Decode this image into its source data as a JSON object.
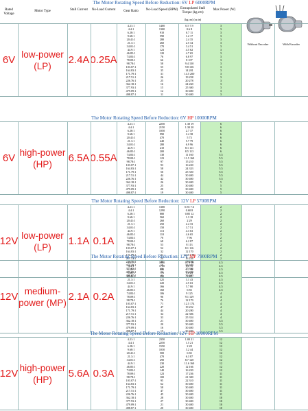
{
  "header": {
    "title_prefix": "The Motor Rotating Speed Before Reduction: 6V",
    "title_variant": "LP",
    "title_suffix": "6000RPM",
    "col_rated_voltage": "Rated Voltage",
    "col_motor_type": "Motor Type",
    "col_stall_current": "Stall Current",
    "col_no_load_current": "No-Load Current",
    "col_gear_ratio": "Gear Ratio",
    "col_no_load_speed": "No-Load Speed (RPM)",
    "col_stall_torque": "Extrapolated Stall Torque (kg.cm)",
    "col_stall_torque_units": "(kg.cm) (oz.in)",
    "col_max_power": "Max Power (W)",
    "label_without_encoder": "Without Encoder",
    "label_with_encoder": "With Encoder"
  },
  "sections": [
    {
      "title_prefix": "",
      "title_variant": "",
      "title_suffix": "",
      "voltage": "6V",
      "motor_type": "low-power (LP)",
      "stall_current": "2.4A",
      "no_load_current": "0.25A",
      "rows": [
        [
          "4.21:1",
          "1400",
          "0.5",
          "7.9",
          "3"
        ],
        [
          "4.4:1",
          "1300",
          "0.6",
          "8",
          "3"
        ],
        [
          "6.28:1",
          "910",
          "0.7",
          "11",
          "3"
        ],
        [
          "9.68:1",
          "590",
          "1.2",
          "17",
          "3"
        ],
        [
          "20.41:1",
          "280",
          "2.4",
          "35",
          "3"
        ],
        [
          "21.3:1",
          "260",
          "2.5",
          "34",
          "3"
        ],
        [
          "34.01:1",
          "170",
          "3.4",
          "51",
          "3"
        ],
        [
          "44.9:1",
          "123",
          "4.5",
          "62",
          "3"
        ],
        [
          "46.85:1",
          "120",
          "4.7",
          "65",
          "3"
        ],
        [
          "74.83:1",
          "76",
          "6.8",
          "97",
          "3"
        ],
        [
          "78.09:1",
          "66",
          "8",
          "107",
          "3"
        ],
        [
          "98.78:1",
          "58",
          "9.4",
          "130",
          "3"
        ],
        [
          "103.07:1",
          "55",
          "9.8",
          "136",
          "3"
        ],
        [
          "164.83:1",
          "35",
          "14",
          "201",
          "3"
        ],
        [
          "171.79:1",
          "31",
          "14.5",
          "200",
          "3"
        ],
        [
          "217.51:1",
          "26",
          "19",
          "258",
          "3"
        ],
        [
          "226.76:1",
          "25",
          "20",
          "278",
          "3"
        ],
        [
          "362.18:1",
          "16",
          "24",
          "260",
          "3"
        ],
        [
          "377.93:1",
          "15",
          "25",
          "300",
          "3"
        ],
        [
          "479.09:1",
          "12",
          "30",
          "400",
          "3"
        ],
        [
          "498.87:1",
          "11",
          "30",
          "400",
          "3"
        ]
      ]
    },
    {
      "title_prefix": "The Motor Rotating Speed Before Reduction: 6V",
      "title_variant": "HP",
      "title_suffix": "10000RPM",
      "voltage": "6V",
      "motor_type": "high-power (HP)",
      "stall_current": "6.5A",
      "no_load_current": "0.55A",
      "rows": [
        [
          "4.21:1",
          "2250",
          "1.30",
          "19",
          "6"
        ],
        [
          "4.4:1",
          "2150",
          "1.30",
          "20",
          "6"
        ],
        [
          "6.28:1",
          "1050",
          "2.7",
          "37",
          "6"
        ],
        [
          "9.68:1",
          "990",
          "2.4",
          "38",
          "6"
        ],
        [
          "20.41:1",
          "470",
          "5",
          "73",
          "6"
        ],
        [
          "21.3:1",
          "440",
          "5.7",
          "79",
          "6"
        ],
        [
          "34.01:1",
          "280",
          "6.9",
          "96",
          "6"
        ],
        [
          "44.9:1",
          "210",
          "8.1",
          "111",
          "6"
        ],
        [
          "46.85:1",
          "200",
          "8.5",
          "113",
          "6"
        ],
        [
          "74.83:1",
          "130",
          "11",
          "160",
          "5.5"
        ],
        [
          "78.09:1",
          "123",
          "11.5",
          "160",
          "5.5"
        ],
        [
          "98.78:1",
          "97",
          "15",
          "210",
          "5.5"
        ],
        [
          "103.07:1",
          "93",
          "16",
          "220",
          "5.5"
        ],
        [
          "164.83:1",
          "58",
          "24",
          "333",
          "5.5"
        ],
        [
          "171.79:1",
          "56",
          "25",
          "350",
          "5.5"
        ],
        [
          "217.51:1",
          "44",
          "30",
          "400",
          "5.5"
        ],
        [
          "226.76:1",
          "42",
          "30",
          "400",
          "5.5"
        ],
        [
          "362.18:1",
          "26",
          "30",
          "400",
          "5"
        ],
        [
          "377.93:1",
          "25",
          "30",
          "400",
          "5"
        ],
        [
          "479.09:1",
          "20",
          "30",
          "400",
          "5"
        ],
        [
          "498.87:1",
          "19",
          "30",
          "400",
          "5"
        ]
      ]
    },
    {
      "title_prefix": "The Motor Rotating Speed Before Reduction: 12V",
      "title_variant": "LP",
      "title_suffix": "5700RPM",
      "voltage": "12V",
      "motor_type": "low-power (LP)",
      "stall_current": "1.1A",
      "no_load_current": "0.1A",
      "rows": [
        [
          "4.21:1",
          "1300",
          "0.55",
          "7.6",
          "2"
        ],
        [
          "4.4:1",
          "1290",
          "0.60",
          "8",
          "2"
        ],
        [
          "6.28:1",
          "880",
          "0.85",
          "12",
          "2"
        ],
        [
          "9.68:1",
          "560",
          "1.3",
          "18",
          "2"
        ],
        [
          "20.41:1",
          "260",
          "2",
          "29",
          "2"
        ],
        [
          "21.3:1",
          "250",
          "2.4",
          "33",
          "2"
        ],
        [
          "34.01:1",
          "150",
          "3.7",
          "51",
          "2"
        ],
        [
          "44.9:1",
          "113",
          "4.3",
          "63",
          "2"
        ],
        [
          "46.85:1",
          "110",
          "4.6",
          "65",
          "2"
        ],
        [
          "74.83:1",
          "70",
          "7",
          "96",
          "2"
        ],
        [
          "78.09:1",
          "68",
          "6.2",
          "87",
          "2"
        ],
        [
          "98.78:1",
          "53",
          "8",
          "113",
          "2"
        ],
        [
          "103.07:1",
          "52",
          "8.1",
          "116",
          "2"
        ],
        [
          "164.83:1",
          "32",
          "12",
          "170",
          "2"
        ],
        [
          "171.79:1",
          "31",
          "12.5",
          "178",
          "2"
        ],
        [
          "217.51:1",
          "24",
          "16",
          "226",
          "2"
        ],
        [
          "226.76:1",
          "23",
          "17",
          "236",
          "2"
        ],
        [
          "362.18:1",
          "15",
          "22",
          "309",
          "1.5"
        ],
        [
          "377.93:1",
          "14",
          "27",
          "336",
          "1.5"
        ],
        [
          "479.09:1",
          "11",
          "30",
          "400",
          "1.5"
        ],
        [
          "498.87:1",
          "11",
          "30",
          "400",
          "1.5"
        ]
      ]
    },
    {
      "title_prefix": "The Motor Rotating Speed Before Reduction: 12V",
      "title_variant": "MP",
      "title_suffix": "7900RPM",
      "voltage": "12V",
      "motor_type": "medium-power (MP)",
      "stall_current": "2.1A",
      "no_load_current": "0.2A",
      "rows": [
        [
          "4.21:1",
          "1800",
          "0.75",
          "10",
          "4.5"
        ],
        [
          "4.4:1",
          "1700",
          "0.8",
          "11",
          "4.5"
        ],
        [
          "6.28:1",
          "800",
          "1.1",
          "16",
          "4.5"
        ],
        [
          "9.68:1",
          "770",
          "1.6",
          "23",
          "4.5"
        ],
        [
          "20.41:1",
          "350",
          "3",
          "42",
          "4.5"
        ],
        [
          "21.3:1",
          "325",
          "3.1",
          "43",
          "4.5"
        ],
        [
          "34.01:1",
          "220",
          "4.5",
          "63",
          "4.5"
        ],
        [
          "44.9:1",
          "166",
          "5.7",
          "80",
          "4.5"
        ],
        [
          "46.85:1",
          "160",
          "6",
          "83",
          "4.5"
        ],
        [
          "74.83:1",
          "106",
          "9",
          "125",
          "4"
        ],
        [
          "78.09:1",
          "96",
          "9.1",
          "129",
          "4"
        ],
        [
          "98.78:1",
          "76",
          "12",
          "170",
          "4"
        ],
        [
          "103.07:1",
          "71",
          "12.5",
          "174",
          "4"
        ],
        [
          "164.83:1",
          "47",
          "19",
          "252",
          "4"
        ],
        [
          "171.79:1",
          "44",
          "20",
          "280",
          "4"
        ],
        [
          "217.51:1",
          "34",
          "22",
          "306",
          "4"
        ],
        [
          "226.76:1",
          "33",
          "25",
          "354",
          "4"
        ],
        [
          "362.18:1",
          "21",
          "30",
          "400",
          "3.5"
        ],
        [
          "377.93:1",
          "20",
          "30",
          "400",
          "3.5"
        ],
        [
          "479.09:1",
          "16",
          "30",
          "400",
          "3.5"
        ],
        [
          "498.87:1",
          "15",
          "30",
          "400",
          "3.5"
        ]
      ]
    },
    {
      "title_prefix": "The Motor Rotating Speed Before Reduction: 12V",
      "title_variant": "HP",
      "title_suffix": "10000RPM",
      "voltage": "12V",
      "motor_type": "high-power (HP)",
      "stall_current": "5.6A",
      "no_load_current": "0.3A",
      "rows": [
        [
          "4.21:1",
          "2350",
          "1.00",
          "21",
          "12"
        ],
        [
          "4.4:1",
          "2250",
          "1.5",
          "21",
          "12"
        ],
        [
          "6.28:1",
          "1550",
          "2",
          "28",
          "12"
        ],
        [
          "9.68:1",
          "1030",
          "3.2",
          "44",
          "12"
        ],
        [
          "20.41:1",
          "500",
          "6",
          "82",
          "12"
        ],
        [
          "21.3:1",
          "470",
          "6.3",
          "87",
          "12"
        ],
        [
          "34.01:1",
          "290",
          "8.7",
          "120",
          "12"
        ],
        [
          "44.9:1",
          "230",
          "11.6",
          "160",
          "12"
        ],
        [
          "46.85:1",
          "220",
          "12",
          "166",
          "12"
        ],
        [
          "74.83:1",
          "140",
          "16",
          "220",
          "12"
        ],
        [
          "78.09:1",
          "123",
          "17",
          "236",
          "11"
        ],
        [
          "98.78:1",
          "100",
          "21",
          "300",
          "11"
        ],
        [
          "103.07:1",
          "95",
          "22",
          "310",
          "11"
        ],
        [
          "164.83:1",
          "62",
          "30",
          "400",
          "11"
        ],
        [
          "171.79:1",
          "58",
          "30",
          "400",
          "11"
        ],
        [
          "217.51:1",
          "47",
          "30",
          "400",
          "11"
        ],
        [
          "226.76:1",
          "45",
          "30",
          "400",
          "11"
        ],
        [
          "362.18:1",
          "28",
          "30",
          "400",
          "10"
        ],
        [
          "377.93:1",
          "27",
          "30",
          "400",
          "10"
        ],
        [
          "479.09:1",
          "21",
          "30",
          "400",
          "10"
        ],
        [
          "498.87:1",
          "20",
          "30",
          "400",
          "10"
        ]
      ]
    }
  ],
  "colors": {
    "title_blue": "#1b57a6",
    "accent_red": "#e21b1b",
    "power_cell_green": "#c8f0c0"
  }
}
